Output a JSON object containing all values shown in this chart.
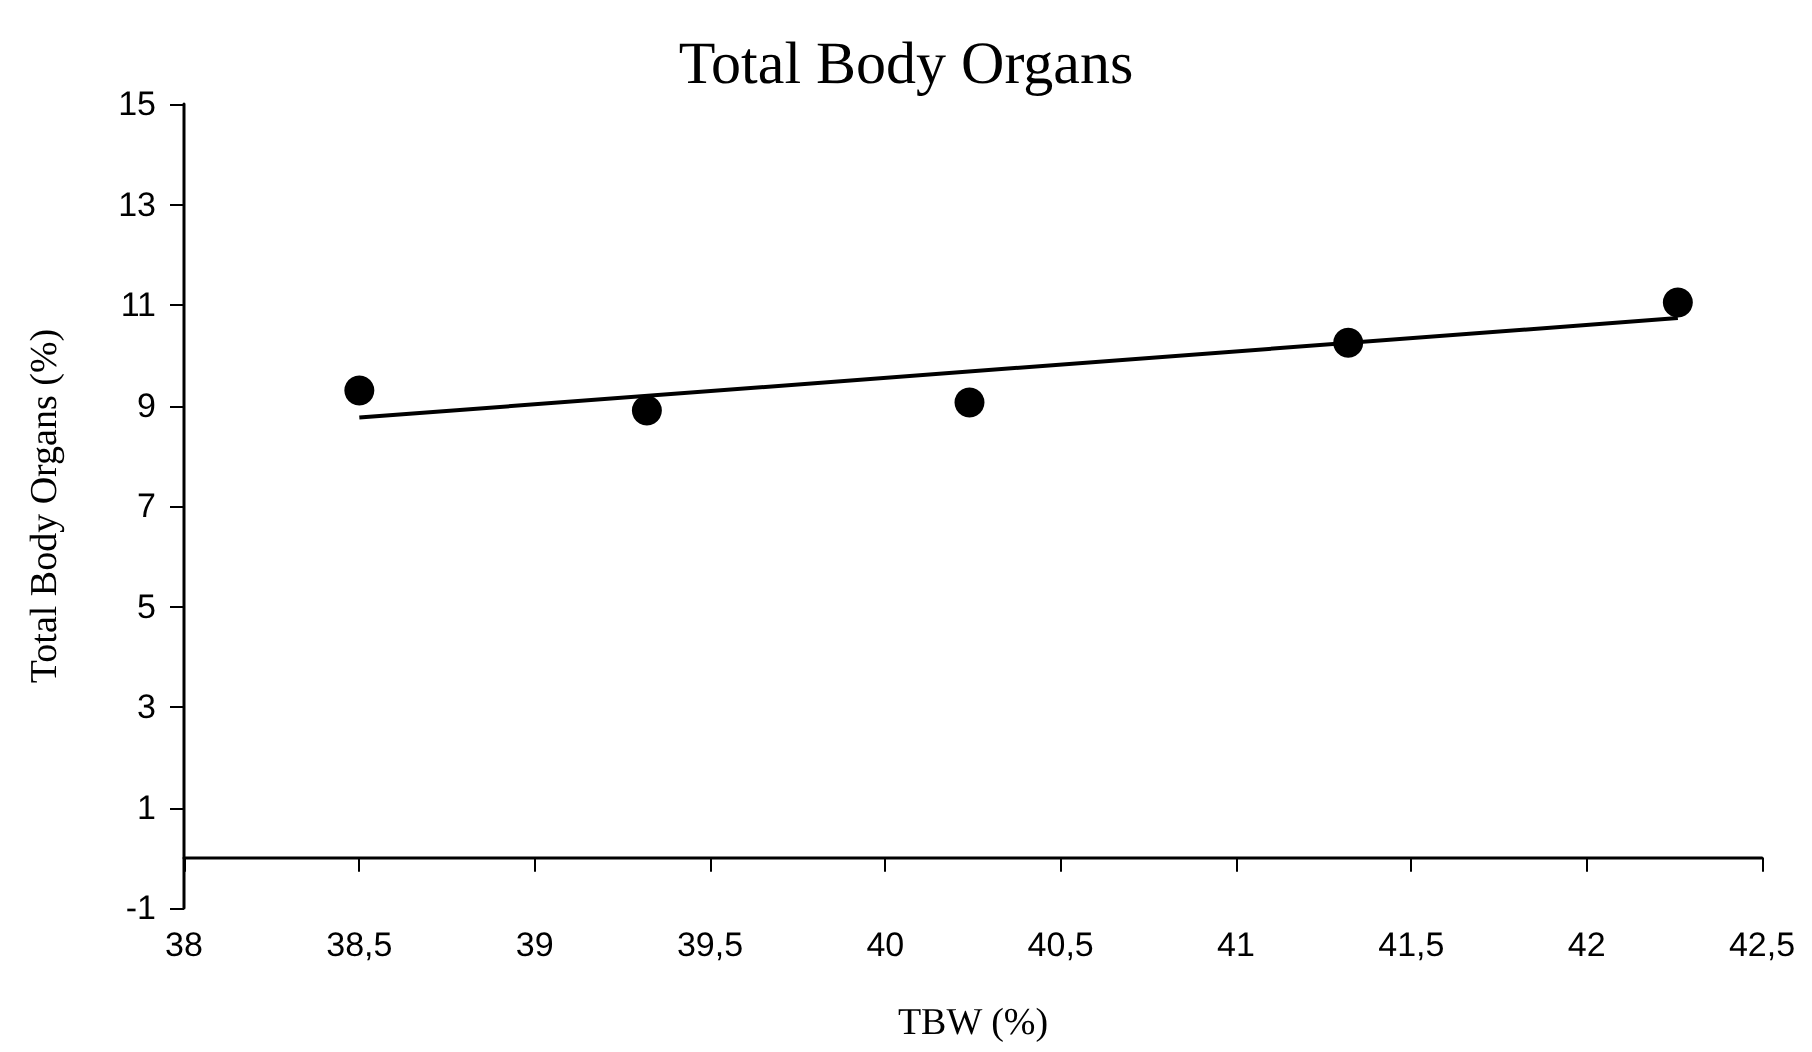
{
  "chart_data": {
    "type": "scatter",
    "title": "Total Body Organs",
    "xlabel": "TBW (%)",
    "ylabel": "Total Body Organs (%)",
    "x": [
      38.5,
      39.32,
      40.24,
      41.32,
      42.26
    ],
    "series": [
      {
        "color": "#000000",
        "values": [
          9.3,
          8.9,
          9.06,
          10.25,
          11.05
        ]
      },
      {
        "type": "line",
        "marker": "none",
        "color": "#000000",
        "x": [
          38.5,
          42.26
        ],
        "values": [
          8.76,
          10.74
        ]
      }
    ],
    "xlim": [
      38,
      42.5
    ],
    "xticks": [
      38,
      {
        "value": 38.5,
        "label": "38,5"
      },
      39,
      {
        "value": 39.5,
        "label": "39,5"
      },
      40,
      {
        "value": 40.5,
        "label": "40,5"
      },
      41,
      {
        "value": 41.5,
        "label": "41,5"
      },
      42,
      {
        "value": 42.5,
        "label": "42,5"
      }
    ],
    "ylim": [
      -1,
      15
    ],
    "yticks": [
      -1,
      1,
      3,
      5,
      7,
      9,
      11,
      13,
      15
    ],
    "grid": false,
    "marker": "circle",
    "line_style": "solid"
  }
}
